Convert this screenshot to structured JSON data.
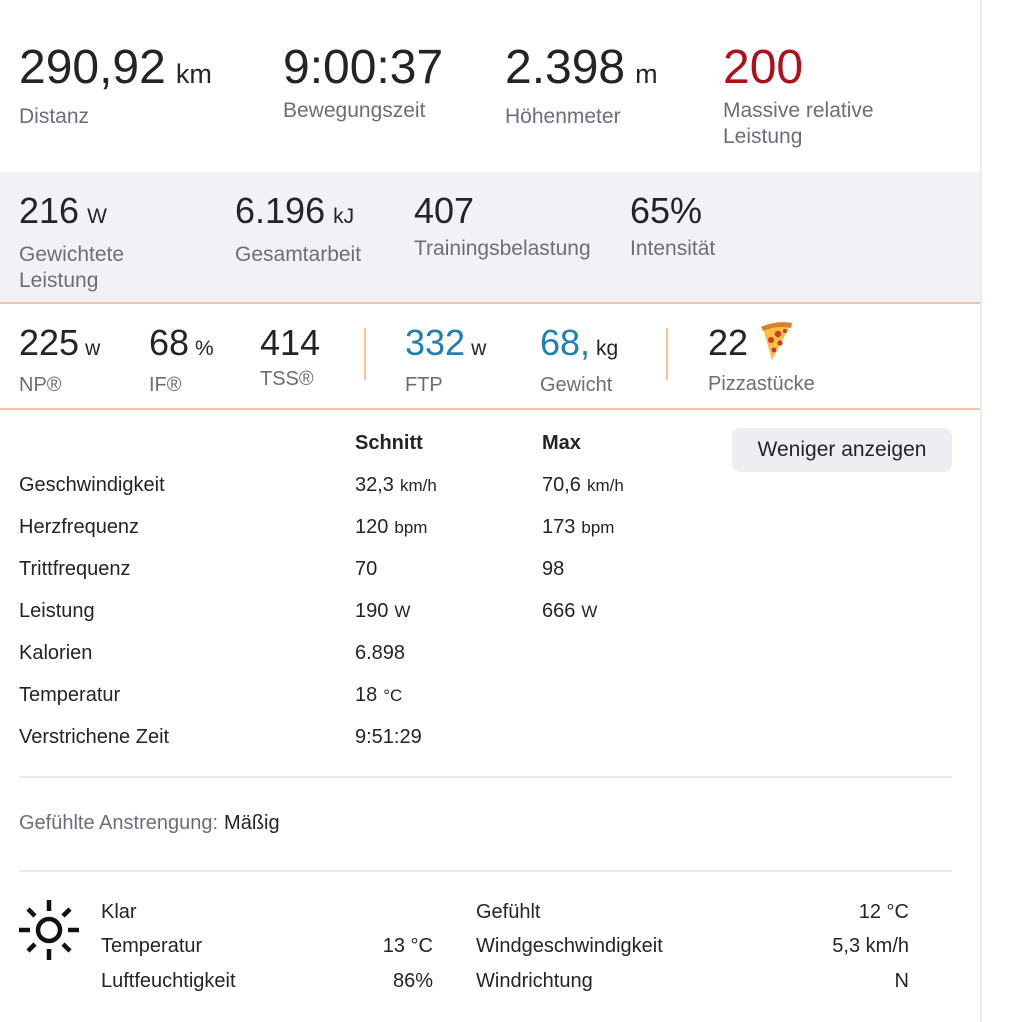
{
  "top_stats": [
    {
      "value": "290,92",
      "unit": "km",
      "label": "Distanz"
    },
    {
      "value": "9:00:37",
      "unit": "",
      "label": "Bewegungszeit"
    },
    {
      "value": "2.398",
      "unit": "m",
      "label": "Höhenmeter"
    },
    {
      "value": "200",
      "unit": "",
      "label_line1": "Massive relative",
      "label_line2": "Leistung",
      "color": "#b0101b"
    }
  ],
  "secondary_stats": [
    {
      "value": "216",
      "unit": "W",
      "label_line1": "Gewichtete",
      "label_line2": "Leistung"
    },
    {
      "value": "6.196",
      "unit": "kJ",
      "label": "Gesamtarbeit"
    },
    {
      "value": "407",
      "unit": "",
      "label": "Trainingsbelastung"
    },
    {
      "value": "65%",
      "unit": "",
      "label": "Intensität"
    }
  ],
  "tertiary_stats": [
    {
      "value": "225",
      "unit": "w",
      "label": "NP®"
    },
    {
      "value": "68",
      "unit": "%",
      "label": "IF®"
    },
    {
      "value": "414",
      "unit": "",
      "label": "TSS®"
    },
    {
      "value": "332",
      "unit": "w",
      "label": "FTP",
      "color": "#1e7fb0"
    },
    {
      "value": "68,",
      "unit": "kg",
      "label": "Gewicht",
      "color": "#1e7fb0"
    },
    {
      "value": "22",
      "unit": "",
      "label": "Pizzastücke",
      "icon": "pizza-icon"
    }
  ],
  "table": {
    "head_avg": "Schnitt",
    "head_max": "Max",
    "toggle_label": "Weniger anzeigen",
    "rows": [
      {
        "label": "Geschwindigkeit",
        "avg": "32,3",
        "avg_unit": "km/h",
        "max": "70,6",
        "max_unit": "km/h"
      },
      {
        "label": "Herzfrequenz",
        "avg": "120",
        "avg_unit": "bpm",
        "max": "173",
        "max_unit": "bpm"
      },
      {
        "label": "Trittfrequenz",
        "avg": "70",
        "avg_unit": "",
        "max": "98",
        "max_unit": ""
      },
      {
        "label": "Leistung",
        "avg": "190",
        "avg_unit": "W",
        "max": "666",
        "max_unit": "W"
      },
      {
        "label": "Kalorien",
        "avg": "6.898",
        "avg_unit": "",
        "max": "",
        "max_unit": ""
      },
      {
        "label": "Temperatur",
        "avg": "18",
        "avg_unit": "°C",
        "max": "",
        "max_unit": ""
      },
      {
        "label": "Verstrichene Zeit",
        "avg": "9:51:29",
        "avg_unit": "",
        "max": "",
        "max_unit": ""
      }
    ]
  },
  "perceived_exertion": {
    "label": "Gefühlte Anstrengung:",
    "value": "Mäßig"
  },
  "weather": {
    "icon": "sun-icon",
    "condition": "Klar",
    "temperature_label": "Temperatur",
    "temperature_value": "13 °C",
    "humidity_label": "Luftfeuchtigkeit",
    "humidity_value": "86%",
    "feels_label": "Gefühlt",
    "feels_value": "12 °C",
    "wind_speed_label": "Windgeschwindigkeit",
    "wind_speed_value": "5,3 km/h",
    "wind_dir_label": "Windrichtung",
    "wind_dir_value": "N"
  }
}
